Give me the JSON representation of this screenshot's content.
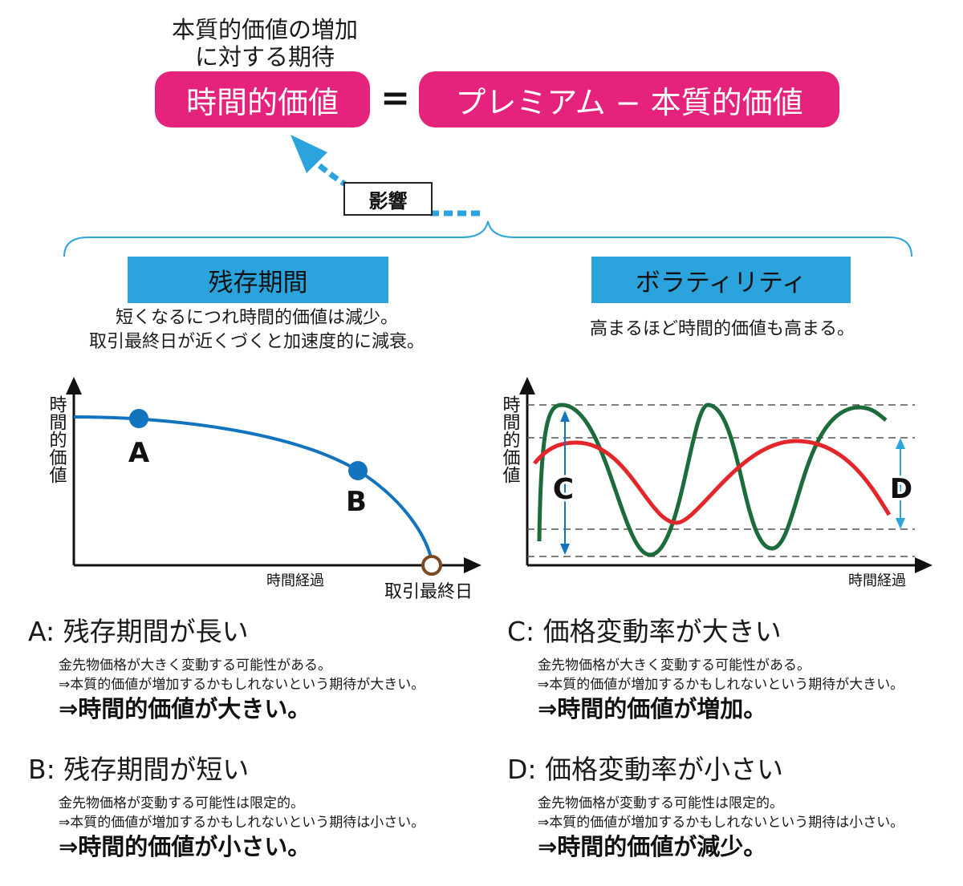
{
  "colors": {
    "pink": "#e5237c",
    "blue_label": "#2ba4dd",
    "arrow_blue": "#2ba4dd",
    "curve_blue": "#1273be",
    "green": "#1c6b3a",
    "red": "#e3262a",
    "brown": "#7a4a22"
  },
  "header": {
    "caption_line1": "本質的価値の増加",
    "caption_line2": "に対する期待",
    "left_pill": "時間的価値",
    "equals": "=",
    "right_pill": "プレミアム − 本質的価値",
    "influence_label": "影響"
  },
  "left_panel": {
    "title": "残存期間",
    "desc_line1": "短くなるにつれ時間的価値は減少。",
    "desc_line2": "取引最終日が近くづくと加速度的に減衰。",
    "y_label": "時間的価値",
    "x_label": "時間経過",
    "end_label": "取引最終日",
    "point_a": "A",
    "point_b": "B"
  },
  "right_panel": {
    "title": "ボラティリティ",
    "desc": "高まるほど時間的価値も高まる。",
    "y_label": "時間的価値",
    "x_label": "時間経過",
    "label_c": "C",
    "label_d": "D"
  },
  "cases": {
    "a": {
      "title": "A: 残存期間が長い",
      "line1": "金先物価格が大きく変動する可能性がある。",
      "line2": "⇒本質的価値が増加するかもしれないという期待が大きい。",
      "result": "⇒時間的価値が大きい。"
    },
    "b": {
      "title": "B: 残存期間が短い",
      "line1": "金先物価格が変動する可能性は限定的。",
      "line2": "⇒本質的価値が増加するかもしれないという期待は小さい。",
      "result": "⇒時間的価値が小さい。"
    },
    "c": {
      "title": "C: 価格変動率が大きい",
      "line1": "金先物価格が大きく変動する可能性がある。",
      "line2": "⇒本質的価値が増加するかもしれないという期待が大きい。",
      "result": "⇒時間的価値が増加。"
    },
    "d": {
      "title": "D: 価格変動率が小さい",
      "line1": "金先物価格が変動する可能性は限定的。",
      "line2": "⇒本質的価値が増加するかもしれないという期待は小さい。",
      "result": "⇒時間的価値が減少。"
    }
  }
}
